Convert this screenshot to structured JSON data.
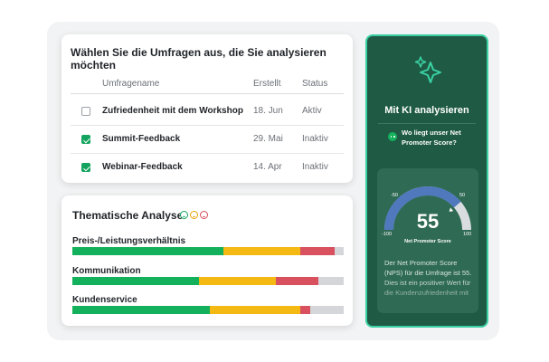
{
  "survey_picker": {
    "title": "Wählen Sie die Umfragen aus, die Sie analysieren möchten",
    "columns": {
      "name": "Umfragename",
      "created": "Erstellt",
      "status": "Status"
    },
    "rows": [
      {
        "name": "Zufriedenheit mit dem Workshop",
        "created": "18. Jun",
        "status": "Aktiv",
        "selected": false
      },
      {
        "name": "Summit-Feedback",
        "created": "29. Mai",
        "status": "Inaktiv",
        "selected": true
      },
      {
        "name": "Webinar-Feedback",
        "created": "14. Apr",
        "status": "Inaktiv",
        "selected": true
      }
    ]
  },
  "thematic_analysis": {
    "title": "Thematische Analyse",
    "sentiment_icons": [
      "positive-face-icon",
      "neutral-face-icon",
      "negative-face-icon"
    ],
    "colors": {
      "positive": "#14b15c",
      "neutral": "#f4b912",
      "negative": "#d9505f",
      "none": "#d4d6d9"
    },
    "topics": [
      {
        "label": "Preis-/Leistungsverhältnis",
        "positive": 0.555,
        "neutral": 0.285,
        "negative": 0.125
      },
      {
        "label": "Kommunikation",
        "positive": 0.465,
        "neutral": 0.285,
        "negative": 0.155
      },
      {
        "label": "Kundenservice",
        "positive": 0.505,
        "neutral": 0.335,
        "negative": 0.035
      }
    ]
  },
  "ai_panel": {
    "icon": "sparkle-icon",
    "title": "Mit KI analysieren",
    "question": "Wo liegt unser Net Promoter Score?",
    "nps": {
      "value": "55",
      "caption": "Net Promoter Score",
      "ticks": [
        "-50",
        "50",
        "-100",
        "100"
      ],
      "answer": "Der Net Promoter Score (NPS) für die Umfrage ist 55. Dies ist ein positiver Wert für die Kundenzufriedenheit mit"
    },
    "colors": {
      "panel": "#1e5a44",
      "border": "#3ad0a2",
      "gauge_fill": "#4f78bd",
      "gauge_track": "#d9dde0"
    }
  }
}
